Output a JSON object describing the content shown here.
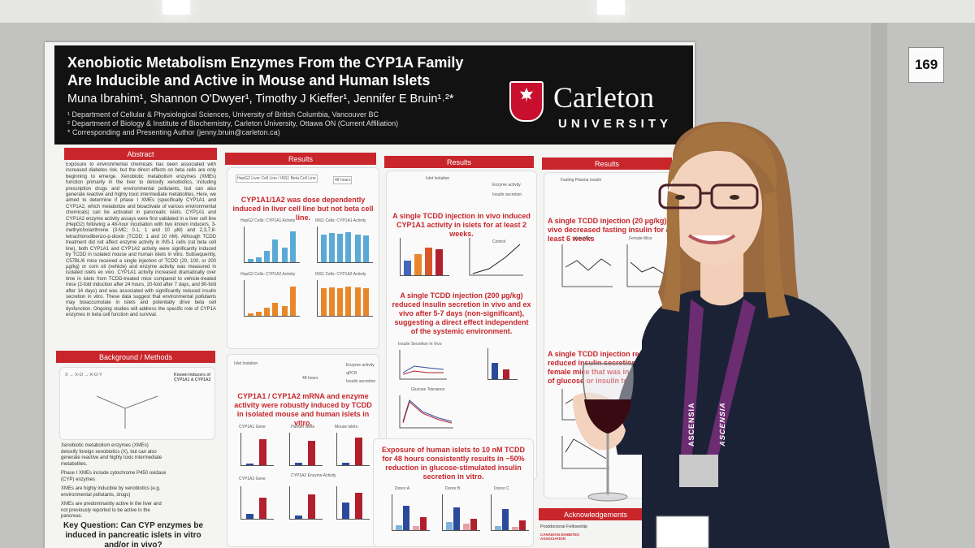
{
  "booth_number": "169",
  "poster": {
    "title_line1": "Xenobiotic Metabolism Enzymes From the CYP1A Family",
    "title_line2": "Are Inducible and Active in Mouse and Human Islets",
    "authors": "Muna Ibrahim¹, Shannon O'Dwyer¹, Timothy J Kieffer¹, Jennifer E Bruin¹˒²*",
    "affiliations": [
      "¹ Department of Cellular & Physiological Sciences, University of British Columbia, Vancouver BC",
      "² Department of Biology & Institute of Biochemistry, Carleton University, Ottawa ON (Current Affiliation)",
      "* Corresponding and Presenting Author (jenny.bruin@carleton.ca)"
    ],
    "logo_name": "Carleton",
    "logo_sub": "UNIVERSITY",
    "sections": {
      "abstract": "Abstract",
      "background": "Background / Methods",
      "results": "Results",
      "acknowledgements": "Acknowledgements"
    },
    "abstract_text": "Exposure to environmental chemicals has been associated with increased diabetes risk, but the direct effects on beta cells are only beginning to emerge. Xenobiotic metabolism enzymes (XMEs) function primarily in the liver to detoxify xenobiotics, including prescription drugs and environmental pollutants, but can also generate reactive and highly toxic intermediate metabolites. Here, we aimed to determine if phase I XMEs (specifically CYP1A1 and CYP1A2, which metabolize and bioactivate of various environmental chemicals) can be activated in pancreatic islets. CYP1A1 and CYP1A2 enzyme activity assays were first validated in a liver cell line (HepG2) following a 48-hour incubation with two known inducers, 3-methylcholanthrene (3-MC; 0.1, 1 and 10 µM) and 2,3,7,8-tetrachlorodibenzo-p-dioxin (TCDD; 1 and 10 nM). Although TCDD treatment did not affect enzyme activity in INS-1 cells (rat beta cell line), both CYP1A1 and CYP1A2 activity were significantly induced by TCDD in isolated mouse and human islets in vitro. Subsequently, C57BL/6 mice received a single injection of TCDD (20, 100, or 200 µg/kg) or corn oil (vehicle) and enzyme activity was measured in isolated islets ex vivo. CYP1A1 activity increased dramatically over time in islets from TCDD-treated mice compared to vehicle-treated mice (2-fold induction after 24 hours, 20-fold after 7 days, and 80-fold after 14 days) and was associated with significantly reduced insulin secretion in vitro. These data suggest that environmental pollutants may bioaccumulate in islets and potentially drive beta cell dysfunction. Ongoing studies will address the specific role of CYP1A enzymes in beta cell function and survival.",
    "background_bullets": [
      "Xenobiotic metabolism enzymes (XMEs) detoxify foreign xenobiotics (X), but can also generate reactive and highly toxic intermediate metabolites.",
      "Phase I XMEs include cytochrome P450 oxidase (CYP) enzymes",
      "XMEs are highly inducible by xenobiotics (e.g. environmental pollutants, drugs)",
      "XMEs are predominantly active in the liver and not previously reported to be active in the pancreas."
    ],
    "key_question": "Key Question: Can CYP enzymes be induced in pancreatic islets in vitro and/or in vivo?",
    "results_titles": [
      "CYP1A1/1A2 was dose dependently induced in liver cell line but not beta cell line.",
      "CYP1A1 / CYP1A2 mRNA and enzyme activity were robustly induced by TCDD in isolated mouse and human islets in vitro.",
      "A single TCDD injection in vivo induced CYP1A1 activity in islets for at least 2 weeks.",
      "A single TCDD injection (200 µg/kg) reduced insulin secretion in vivo and ex vivo after 5-7 days (non-significant), suggesting a direct effect independent of the systemic environment.",
      "Exposure of human islets to 10 nM TCDD for 48 hours consistently results in ~50% reduction in glucose-stimulated insulin secretion in vitro.",
      "A single TCDD injection (20 µg/kg) in vivo decreased fasting insulin for at least 6 weeks",
      "A single TCDD injection resulted in reduced insulin secretion and female mice that was independent of glucose or insulin tolerance"
    ],
    "panel_labels": {
      "hepg2_a": "HepG2 Cells: CYP1A1 Activity",
      "ins1_b": "INS1 Cells: CYP1A1 Activity",
      "hepg2_c": "HepG2 Cells: CYP1A2 Activity",
      "ins1_d": "INS1 Cells: CYP1A2 Activity",
      "cyp1a1_gene": "CYP1A1 Gene",
      "cyp1a1_enzyme": "CYP1A1 Enzyme Activity",
      "cyp1a2_gene": "CYP1A2 Gene",
      "cyp1a2_enzyme": "CYP1A2 Enzyme Activity",
      "human_islets": "Human Islets",
      "mouse_islets": "Mouse Islets",
      "donor_a": "Donor A",
      "donor_b": "Donor B",
      "donor_c": "Donor C",
      "male_mice": "Male Mice",
      "female_mice": "Female Mice",
      "glucose_tolerance": "Glucose Tolerance",
      "insulin_secretion": "Insulin Secretion In Vivo",
      "islet_isolation": "Islet Isolation",
      "hours48": "48 hours",
      "enzyme_activity": "Enzyme activity",
      "insulin_secretion_short": "Insulin secretion",
      "qpcr": "qPCR",
      "fasting_insulin": "Fasting Plasma Insulin",
      "control": "Control",
      "tcdd": "TCDD",
      "ctrl": "Ctrl",
      "postdoc": "Postdoctoral Fellowship",
      "cda": "CANADIAN DIABETES ASSOCIATION"
    }
  },
  "scene": {
    "lanyard_text": "ASCENSIA",
    "colors": {
      "poster_red": "#c8262b",
      "header_black": "#121212",
      "board_gray": "#c2c2c0",
      "sweater_navy": "#1b2235",
      "hair_brown": "#9b6a3f",
      "lanyard_purple": "#6b2c72",
      "wine": "#3a0a12"
    }
  }
}
